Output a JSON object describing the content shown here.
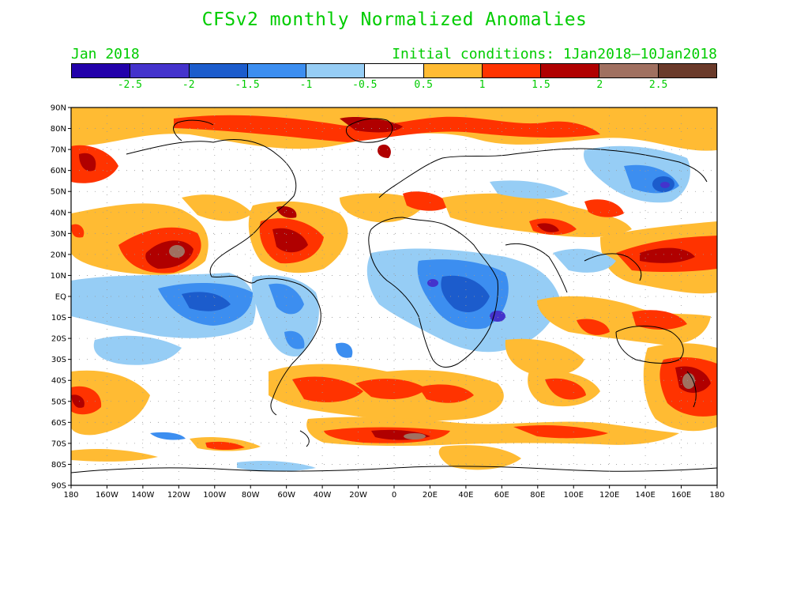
{
  "title": "CFSv2 monthly Normalized Anomalies",
  "subtitle_left": "Jan 2018",
  "subtitle_right": "Initial conditions: 1Jan2018—10Jan2018",
  "colorbar": {
    "colors": [
      "#2200aa",
      "#4433cc",
      "#1c5ccc",
      "#3c8ef0",
      "#96cdf5",
      "#ffffff",
      "#ffbb33",
      "#ff3300",
      "#b00000",
      "#a07060",
      "#6a3a2a"
    ],
    "labels": [
      "-2.5",
      "-2",
      "-1.5",
      "-1",
      "-0.5",
      "0.5",
      "1",
      "1.5",
      "2",
      "2.5"
    ]
  },
  "lat_labels": [
    "90N",
    "80N",
    "70N",
    "60N",
    "50N",
    "40N",
    "30N",
    "20N",
    "10N",
    "EQ",
    "10S",
    "20S",
    "30S",
    "40S",
    "50S",
    "60S",
    "70S",
    "80S",
    "90S"
  ],
  "lon_labels": [
    "180",
    "160W",
    "140W",
    "120W",
    "100W",
    "80W",
    "60W",
    "40W",
    "20W",
    "0",
    "20E",
    "40E",
    "60E",
    "80E",
    "100E",
    "120E",
    "140E",
    "160E",
    "180"
  ]
}
